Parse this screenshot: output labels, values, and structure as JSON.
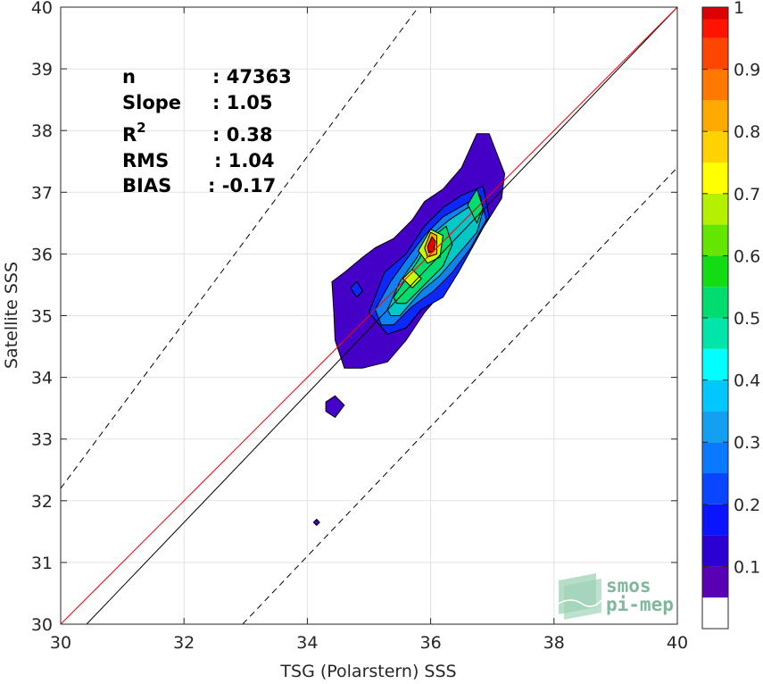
{
  "chart_data": {
    "type": "contour",
    "xlabel": "TSG (Polarstern) SSS",
    "ylabel": "Satellite SSS",
    "xlim": [
      30,
      40
    ],
    "ylim": [
      30,
      40
    ],
    "x_ticks": [
      "30",
      "32",
      "34",
      "36",
      "38",
      "40"
    ],
    "y_ticks": [
      "30",
      "31",
      "32",
      "33",
      "34",
      "35",
      "36",
      "37",
      "38",
      "39",
      "40"
    ],
    "grid": true,
    "stats": [
      {
        "label": "n",
        "value": ": 47363"
      },
      {
        "label": "Slope",
        "value": ": 1.05"
      },
      {
        "label": "R",
        "sup": "2",
        "value": ": 0.38"
      },
      {
        "label": "RMS",
        "value": ": 1.04"
      },
      {
        "label": "BIAS",
        "value": ": -0.17"
      }
    ],
    "lines": {
      "identity": {
        "x": [
          30,
          40
        ],
        "y": [
          30,
          40
        ],
        "color": "#ff0000"
      },
      "fit": {
        "x": [
          30.42,
          40
        ],
        "y": [
          30,
          40
        ],
        "color": "#000000"
      },
      "upper_bound": {
        "x": [
          30,
          35.8
        ],
        "y": [
          32.2,
          40
        ],
        "style": "dashed"
      },
      "lower_bound": {
        "x": [
          32.95,
          40
        ],
        "y": [
          30,
          37.4
        ],
        "style": "dashed"
      }
    },
    "contour_levels": [
      {
        "level": 0.05,
        "color": "#4500c8",
        "polygons": [
          [
            [
              34.4,
              35.55
            ],
            [
              34.6,
              35.7
            ],
            [
              34.9,
              35.95
            ],
            [
              35.1,
              36.1
            ],
            [
              35.4,
              36.25
            ],
            [
              35.7,
              36.55
            ],
            [
              35.9,
              36.85
            ],
            [
              36.2,
              37.05
            ],
            [
              36.5,
              37.4
            ],
            [
              36.75,
              37.95
            ],
            [
              36.95,
              37.95
            ],
            [
              37.2,
              37.3
            ],
            [
              37.15,
              36.9
            ],
            [
              36.9,
              36.5
            ],
            [
              36.5,
              35.95
            ],
            [
              36.2,
              35.4
            ],
            [
              35.9,
              35.05
            ],
            [
              35.6,
              34.6
            ],
            [
              35.3,
              34.25
            ],
            [
              34.9,
              34.15
            ],
            [
              34.6,
              34.15
            ],
            [
              34.45,
              34.6
            ],
            [
              34.43,
              35.05
            ]
          ],
          [
            [
              34.3,
              33.6
            ],
            [
              34.45,
              33.7
            ],
            [
              34.6,
              33.55
            ],
            [
              34.45,
              33.35
            ],
            [
              34.3,
              33.45
            ]
          ],
          [
            [
              34.1,
              31.65
            ],
            [
              34.15,
              31.7
            ],
            [
              34.2,
              31.65
            ],
            [
              34.15,
              31.6
            ]
          ]
        ]
      },
      {
        "level": 0.15,
        "color": "#0a28ff",
        "polygons": [
          [
            [
              35.0,
              35.05
            ],
            [
              35.25,
              35.7
            ],
            [
              35.6,
              36.0
            ],
            [
              35.9,
              36.45
            ],
            [
              36.2,
              36.75
            ],
            [
              36.5,
              36.95
            ],
            [
              36.85,
              37.1
            ],
            [
              36.95,
              36.6
            ],
            [
              36.7,
              36.15
            ],
            [
              36.45,
              35.7
            ],
            [
              36.2,
              35.3
            ],
            [
              35.85,
              35.1
            ],
            [
              35.6,
              34.8
            ],
            [
              35.3,
              34.7
            ]
          ],
          [
            [
              34.7,
              35.45
            ],
            [
              34.8,
              35.55
            ],
            [
              34.9,
              35.4
            ],
            [
              34.8,
              35.3
            ]
          ]
        ]
      },
      {
        "level": 0.25,
        "color": "#0f82f0",
        "polygons": [
          [
            [
              35.1,
              35.1
            ],
            [
              35.35,
              35.55
            ],
            [
              35.6,
              35.9
            ],
            [
              35.9,
              36.3
            ],
            [
              36.2,
              36.6
            ],
            [
              36.55,
              36.8
            ],
            [
              36.8,
              36.95
            ],
            [
              36.9,
              36.55
            ],
            [
              36.65,
              36.1
            ],
            [
              36.35,
              35.7
            ],
            [
              36.05,
              35.4
            ],
            [
              35.7,
              35.15
            ],
            [
              35.4,
              34.85
            ],
            [
              35.2,
              34.85
            ]
          ]
        ]
      },
      {
        "level": 0.35,
        "color": "#00c8c8",
        "polygons": [
          [
            [
              35.3,
              35.1
            ],
            [
              35.5,
              35.55
            ],
            [
              35.75,
              35.9
            ],
            [
              36.0,
              36.3
            ],
            [
              36.3,
              36.55
            ],
            [
              36.6,
              36.75
            ],
            [
              36.85,
              36.7
            ],
            [
              36.75,
              36.35
            ],
            [
              36.45,
              36.0
            ],
            [
              36.15,
              35.65
            ],
            [
              35.85,
              35.4
            ],
            [
              35.5,
              35.0
            ],
            [
              35.35,
              35.0
            ]
          ]
        ]
      },
      {
        "level": 0.45,
        "color": "#00dc6e",
        "polygons": [
          [
            [
              35.4,
              35.3
            ],
            [
              35.6,
              35.6
            ],
            [
              35.8,
              35.9
            ],
            [
              36.0,
              36.25
            ],
            [
              36.25,
              36.45
            ],
            [
              36.35,
              36.15
            ],
            [
              36.2,
              35.8
            ],
            [
              35.9,
              35.5
            ],
            [
              35.6,
              35.2
            ],
            [
              35.45,
              35.2
            ]
          ],
          [
            [
              36.6,
              36.8
            ],
            [
              36.75,
              37.05
            ],
            [
              36.85,
              36.75
            ],
            [
              36.75,
              36.5
            ]
          ]
        ]
      },
      {
        "level": 0.6,
        "color": "#c8ff00",
        "polygons": [
          [
            [
              35.55,
              35.6
            ],
            [
              35.7,
              35.75
            ],
            [
              35.85,
              35.6
            ],
            [
              35.7,
              35.45
            ]
          ],
          [
            [
              35.8,
              36.05
            ],
            [
              36.0,
              36.4
            ],
            [
              36.2,
              36.3
            ],
            [
              36.15,
              35.95
            ],
            [
              35.95,
              35.85
            ]
          ]
        ]
      },
      {
        "level": 0.75,
        "color": "#ffaa00",
        "polygons": [
          [
            [
              35.9,
              36.1
            ],
            [
              36.0,
              36.35
            ],
            [
              36.1,
              36.3
            ],
            [
              36.1,
              36.0
            ],
            [
              35.95,
              35.95
            ]
          ]
        ]
      },
      {
        "level": 0.9,
        "color": "#e60000",
        "polygons": [
          [
            [
              35.95,
              36.12
            ],
            [
              36.02,
              36.28
            ],
            [
              36.08,
              36.2
            ],
            [
              36.05,
              36.05
            ],
            [
              35.97,
              36.02
            ]
          ]
        ]
      }
    ],
    "colorbar": {
      "ticks": [
        "0.1",
        "0.2",
        "0.3",
        "0.4",
        "0.5",
        "0.6",
        "0.7",
        "0.8",
        "0.9",
        "1"
      ],
      "range": [
        0,
        1
      ],
      "colors": [
        "#ffffff",
        "#5a00b4",
        "#2d00d2",
        "#0a14ff",
        "#0a46ff",
        "#0a78ff",
        "#14a0f0",
        "#00c8ff",
        "#00ffff",
        "#00e6aa",
        "#00dc6e",
        "#14dc14",
        "#64e600",
        "#b4f000",
        "#ffff00",
        "#ffd200",
        "#ffaa00",
        "#ff7800",
        "#ff4600",
        "#ff1400",
        "#dc0000",
        "#8c0000"
      ],
      "bounds": [
        0,
        0.05,
        0.1,
        0.15,
        0.2,
        0.25,
        0.3,
        0.35,
        0.4,
        0.45,
        0.5,
        0.55,
        0.6,
        0.65,
        0.7,
        0.75,
        0.8,
        0.85,
        0.9,
        0.95,
        0.98,
        1.0
      ]
    },
    "watermark": {
      "line1": "smos",
      "line2": "pi-mep"
    }
  }
}
